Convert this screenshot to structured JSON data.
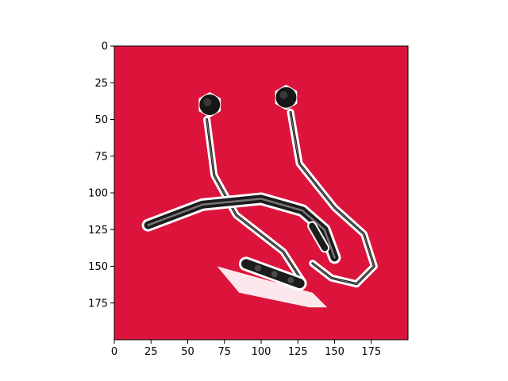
{
  "chart_data": {
    "type": "image",
    "title": "",
    "xlabel": "",
    "ylabel": "",
    "xlim": [
      0,
      200
    ],
    "ylim": [
      200,
      0
    ],
    "x_ticks": [
      0,
      25,
      50,
      75,
      100,
      125,
      150,
      175
    ],
    "y_ticks": [
      0,
      25,
      50,
      75,
      100,
      125,
      150,
      175
    ],
    "background_color": "#DC143C",
    "subject": "neckband-earphones",
    "earbuds": [
      {
        "name": "left-earbud",
        "x": 65,
        "y": 40
      },
      {
        "name": "right-earbud",
        "x": 117,
        "y": 35
      }
    ],
    "neckband_path": [
      [
        23,
        122
      ],
      [
        60,
        108
      ],
      [
        100,
        104
      ],
      [
        128,
        112
      ],
      [
        143,
        125
      ],
      [
        150,
        144
      ]
    ],
    "left_cable_path": [
      [
        63,
        50
      ],
      [
        68,
        88
      ],
      [
        83,
        115
      ],
      [
        115,
        140
      ],
      [
        128,
        160
      ]
    ],
    "right_cable_path": [
      [
        120,
        45
      ],
      [
        126,
        80
      ],
      [
        150,
        110
      ],
      [
        170,
        128
      ],
      [
        177,
        150
      ],
      [
        165,
        162
      ],
      [
        148,
        158
      ],
      [
        135,
        148
      ]
    ],
    "control_pod": {
      "x": 108,
      "y": 155
    },
    "right_pod": {
      "x": 139,
      "y": 130
    }
  }
}
